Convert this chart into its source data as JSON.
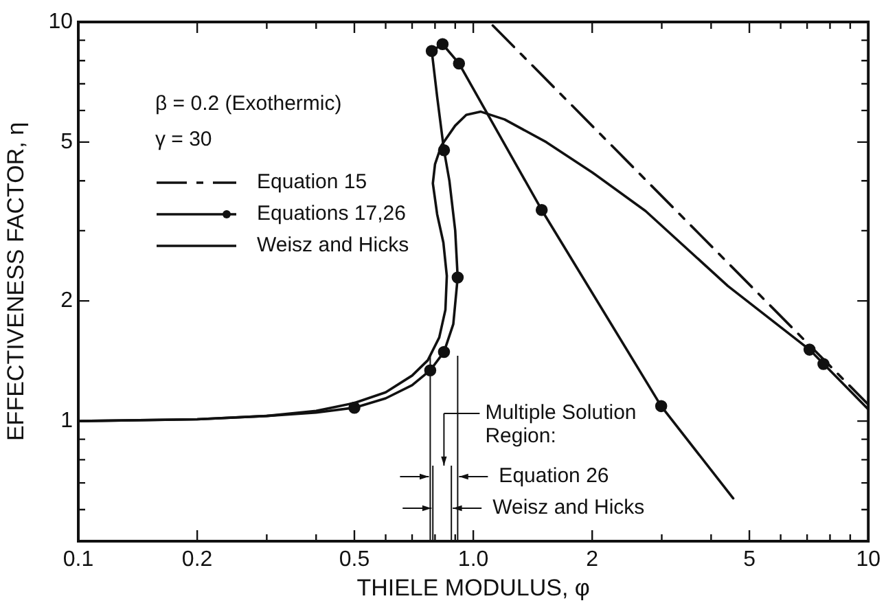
{
  "chart_data": {
    "type": "line",
    "xlabel": "THIELE MODULUS, φ",
    "ylabel": "EFFECTIVENESS FACTOR, η",
    "log": "xy",
    "grid": false,
    "legend": "top left",
    "xlim": [
      0.1,
      10
    ],
    "ylim": [
      0.5,
      10
    ],
    "xticks": [
      0.1,
      0.2,
      {
        "value": 0.3,
        "label": null
      },
      {
        "value": 0.4,
        "label": null
      },
      0.5,
      {
        "value": 0.6,
        "label": null
      },
      {
        "value": 0.7,
        "label": null
      },
      {
        "value": 0.8,
        "label": null
      },
      {
        "value": 0.9,
        "label": null
      },
      {
        "value": 1,
        "label": "1.0"
      },
      2,
      {
        "value": 3,
        "label": null
      },
      {
        "value": 4,
        "label": null
      },
      5,
      {
        "value": 6,
        "label": null
      },
      {
        "value": 7,
        "label": null
      },
      {
        "value": 8,
        "label": null
      },
      {
        "value": 9,
        "label": null
      },
      10
    ],
    "yticks": [
      {
        "value": 0.6,
        "label": null
      },
      {
        "value": 0.7,
        "label": null
      },
      {
        "value": 0.8,
        "label": null
      },
      {
        "value": 0.9,
        "label": null
      },
      1,
      2,
      {
        "value": 3,
        "label": null
      },
      {
        "value": 4,
        "label": null
      },
      5,
      {
        "value": 6,
        "label": null
      },
      {
        "value": 7,
        "label": null
      },
      {
        "value": 8,
        "label": null
      },
      {
        "value": 9,
        "label": null
      },
      10
    ],
    "series": [
      {
        "name": "Equation 15",
        "type": "line",
        "color": "#111111",
        "line_style": "dashed",
        "marker": "none",
        "x": [
          1.12,
          10
        ],
        "values": [
          9.8,
          1.1
        ]
      },
      {
        "type": "line",
        "color": "#111111",
        "marker": "none",
        "x": [
          0.1,
          0.2,
          0.3,
          0.4,
          0.5,
          0.6,
          0.7,
          0.778,
          0.843,
          0.89,
          0.913,
          0.9,
          0.87,
          0.843,
          0.81,
          0.785,
          0.836,
          0.92,
          1.49,
          2.99,
          4.55
        ],
        "values": [
          1.0,
          1.01,
          1.03,
          1.05,
          1.08,
          1.14,
          1.23,
          1.34,
          1.49,
          1.75,
          2.29,
          3.0,
          4.0,
          4.77,
          6.5,
          8.46,
          8.8,
          7.87,
          3.38,
          1.09,
          0.64
        ]
      },
      {
        "name": "Equations 17,26",
        "type": "scatter",
        "color": "#111111",
        "marker": "circle",
        "x": [
          0.5,
          0.778,
          0.843,
          0.913,
          0.843,
          0.785,
          0.836,
          0.92,
          1.49,
          2.99,
          7.1,
          7.7
        ],
        "values": [
          1.08,
          1.34,
          1.49,
          2.29,
          4.77,
          8.46,
          8.8,
          7.87,
          3.38,
          1.09,
          1.51,
          1.39
        ]
      },
      {
        "name": "Weisz and Hicks",
        "type": "line",
        "color": "#111111",
        "line_style": "solid",
        "marker": "none",
        "x": [
          0.1,
          0.2,
          0.3,
          0.4,
          0.5,
          0.6,
          0.7,
          0.767,
          0.82,
          0.85,
          0.857,
          0.84,
          0.81,
          0.79,
          0.8,
          0.83,
          0.9,
          0.96,
          1.045,
          1.2,
          1.53,
          2.0,
          2.73,
          4.41,
          7.1,
          10
        ],
        "values": [
          1.0,
          1.01,
          1.03,
          1.06,
          1.11,
          1.18,
          1.3,
          1.42,
          1.62,
          1.9,
          2.31,
          2.8,
          3.3,
          3.94,
          4.4,
          4.9,
          5.5,
          5.85,
          5.96,
          5.7,
          5.0,
          4.2,
          3.36,
          2.18,
          1.51,
          1.07
        ]
      }
    ],
    "ref_lines": [
      {
        "axis": "x",
        "value": 0.778
      },
      {
        "axis": "x",
        "value": 0.913,
        "label": "Equation 26"
      },
      {
        "axis": "x",
        "value": 0.79
      },
      {
        "axis": "x",
        "value": 0.88,
        "label": "Weisz and Hicks"
      }
    ],
    "annotations": [
      "β = 0.2 (Exothermic)",
      "γ = 30",
      "Multiple Solution Region:"
    ]
  }
}
